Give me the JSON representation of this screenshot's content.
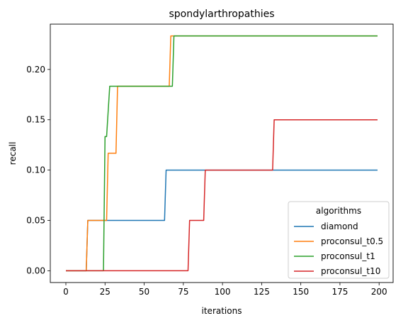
{
  "chart_data": {
    "type": "line",
    "title": "spondylarthropathies",
    "xlabel": "iterations",
    "ylabel": "recall",
    "xlim": [
      -9.95,
      208.95
    ],
    "ylim": [
      -0.0117,
      0.245
    ],
    "xticks": [
      0,
      25,
      50,
      75,
      100,
      125,
      150,
      175,
      200
    ],
    "yticks": [
      0.0,
      0.05,
      0.1,
      0.15,
      0.2
    ],
    "ytick_labels": [
      "0.00",
      "0.05",
      "0.10",
      "0.15",
      "0.20"
    ],
    "grid": false,
    "legend": {
      "title": "algorithms",
      "placement": "lower-right"
    },
    "series": [
      {
        "name": "diamond",
        "color": "#1f77b4",
        "points": [
          [
            0,
            0
          ],
          [
            13,
            0
          ],
          [
            14,
            0.05
          ],
          [
            63,
            0.05
          ],
          [
            64,
            0.1
          ],
          [
            199,
            0.1
          ]
        ]
      },
      {
        "name": "proconsul_t0.5",
        "color": "#ff7f0e",
        "points": [
          [
            0,
            0
          ],
          [
            13,
            0
          ],
          [
            14,
            0.05
          ],
          [
            26,
            0.05
          ],
          [
            27,
            0.1167
          ],
          [
            32,
            0.1167
          ],
          [
            33,
            0.1833
          ],
          [
            66,
            0.1833
          ],
          [
            67,
            0.2333
          ],
          [
            199,
            0.2333
          ]
        ]
      },
      {
        "name": "proconsul_t1",
        "color": "#2ca02c",
        "points": [
          [
            0,
            0
          ],
          [
            24,
            0
          ],
          [
            25,
            0.1333
          ],
          [
            26,
            0.1333
          ],
          [
            28,
            0.1833
          ],
          [
            68,
            0.1833
          ],
          [
            69,
            0.2333
          ],
          [
            199,
            0.2333
          ]
        ]
      },
      {
        "name": "proconsul_t10",
        "color": "#d62728",
        "points": [
          [
            0,
            0
          ],
          [
            78,
            0
          ],
          [
            79,
            0.05
          ],
          [
            88,
            0.05
          ],
          [
            89,
            0.1
          ],
          [
            132,
            0.1
          ],
          [
            133,
            0.15
          ],
          [
            199,
            0.15
          ]
        ]
      }
    ]
  }
}
